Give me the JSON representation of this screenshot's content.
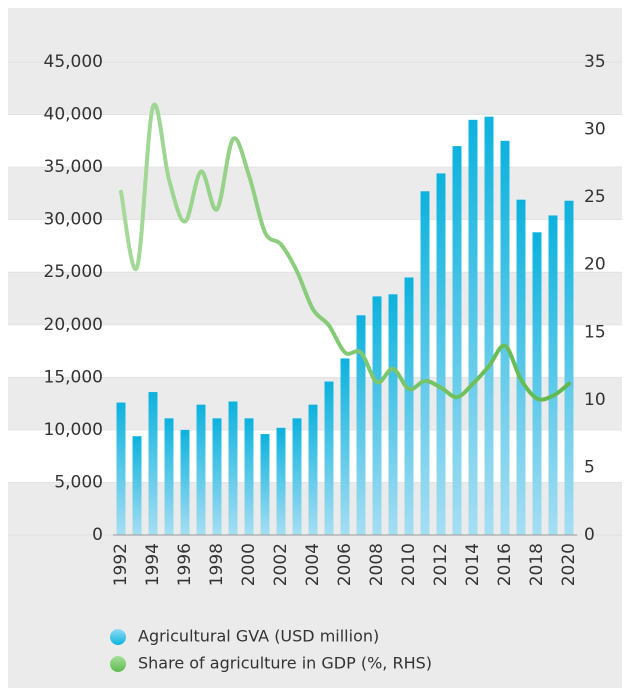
{
  "chart_data": {
    "type": "bar_line",
    "categories": [
      "1992",
      null,
      "1994",
      null,
      "1996",
      null,
      "1998",
      null,
      "2000",
      null,
      "2002",
      null,
      "2004",
      null,
      "2006",
      null,
      "2008",
      null,
      "2010",
      null,
      "2012",
      null,
      "2014",
      null,
      "2016",
      null,
      "2018",
      null,
      "2020"
    ],
    "series": [
      {
        "name": "Agricultural GVA (USD million)",
        "type": "bar",
        "color": "#0cb2de",
        "values": [
          12600,
          9400,
          13600,
          11100,
          10000,
          12400,
          11100,
          12700,
          11100,
          9600,
          10200,
          11100,
          12400,
          14600,
          16800,
          20900,
          22700,
          22900,
          24500,
          32700,
          34400,
          37000,
          39500,
          39800,
          37500,
          31900,
          28800,
          30400,
          31800
        ]
      },
      {
        "name": "Share of agriculture in GDP (%, RHS)",
        "type": "line",
        "axis": "y2",
        "color": "#5fb94d",
        "values": [
          25.4,
          19.8,
          31.7,
          26.3,
          23.2,
          26.9,
          24.1,
          29.3,
          26.6,
          22.4,
          21.5,
          19.5,
          16.7,
          15.5,
          13.5,
          13.5,
          11.3,
          12.3,
          10.8,
          11.4,
          10.9,
          10.2,
          11.2,
          12.5,
          14.0,
          11.5,
          10.1,
          10.3,
          11.2
        ]
      }
    ],
    "ylim": [
      0,
      45000
    ],
    "yticks": [
      0,
      {
        "value": 5000,
        "label": "5,000"
      },
      {
        "value": 10000,
        "label": "10,000"
      },
      {
        "value": 15000,
        "label": "15,000"
      },
      {
        "value": 20000,
        "label": "20,000"
      },
      {
        "value": 25000,
        "label": "25,000"
      },
      {
        "value": 30000,
        "label": "30,000"
      },
      {
        "value": 35000,
        "label": "35,000"
      },
      {
        "value": 40000,
        "label": "40,000"
      },
      {
        "value": 45000,
        "label": "45,000"
      }
    ],
    "y2lim": [
      0,
      35
    ],
    "y2ticks": [
      0,
      5,
      10,
      15,
      20,
      25,
      30,
      35
    ],
    "grid": true,
    "legend": "bottom"
  }
}
